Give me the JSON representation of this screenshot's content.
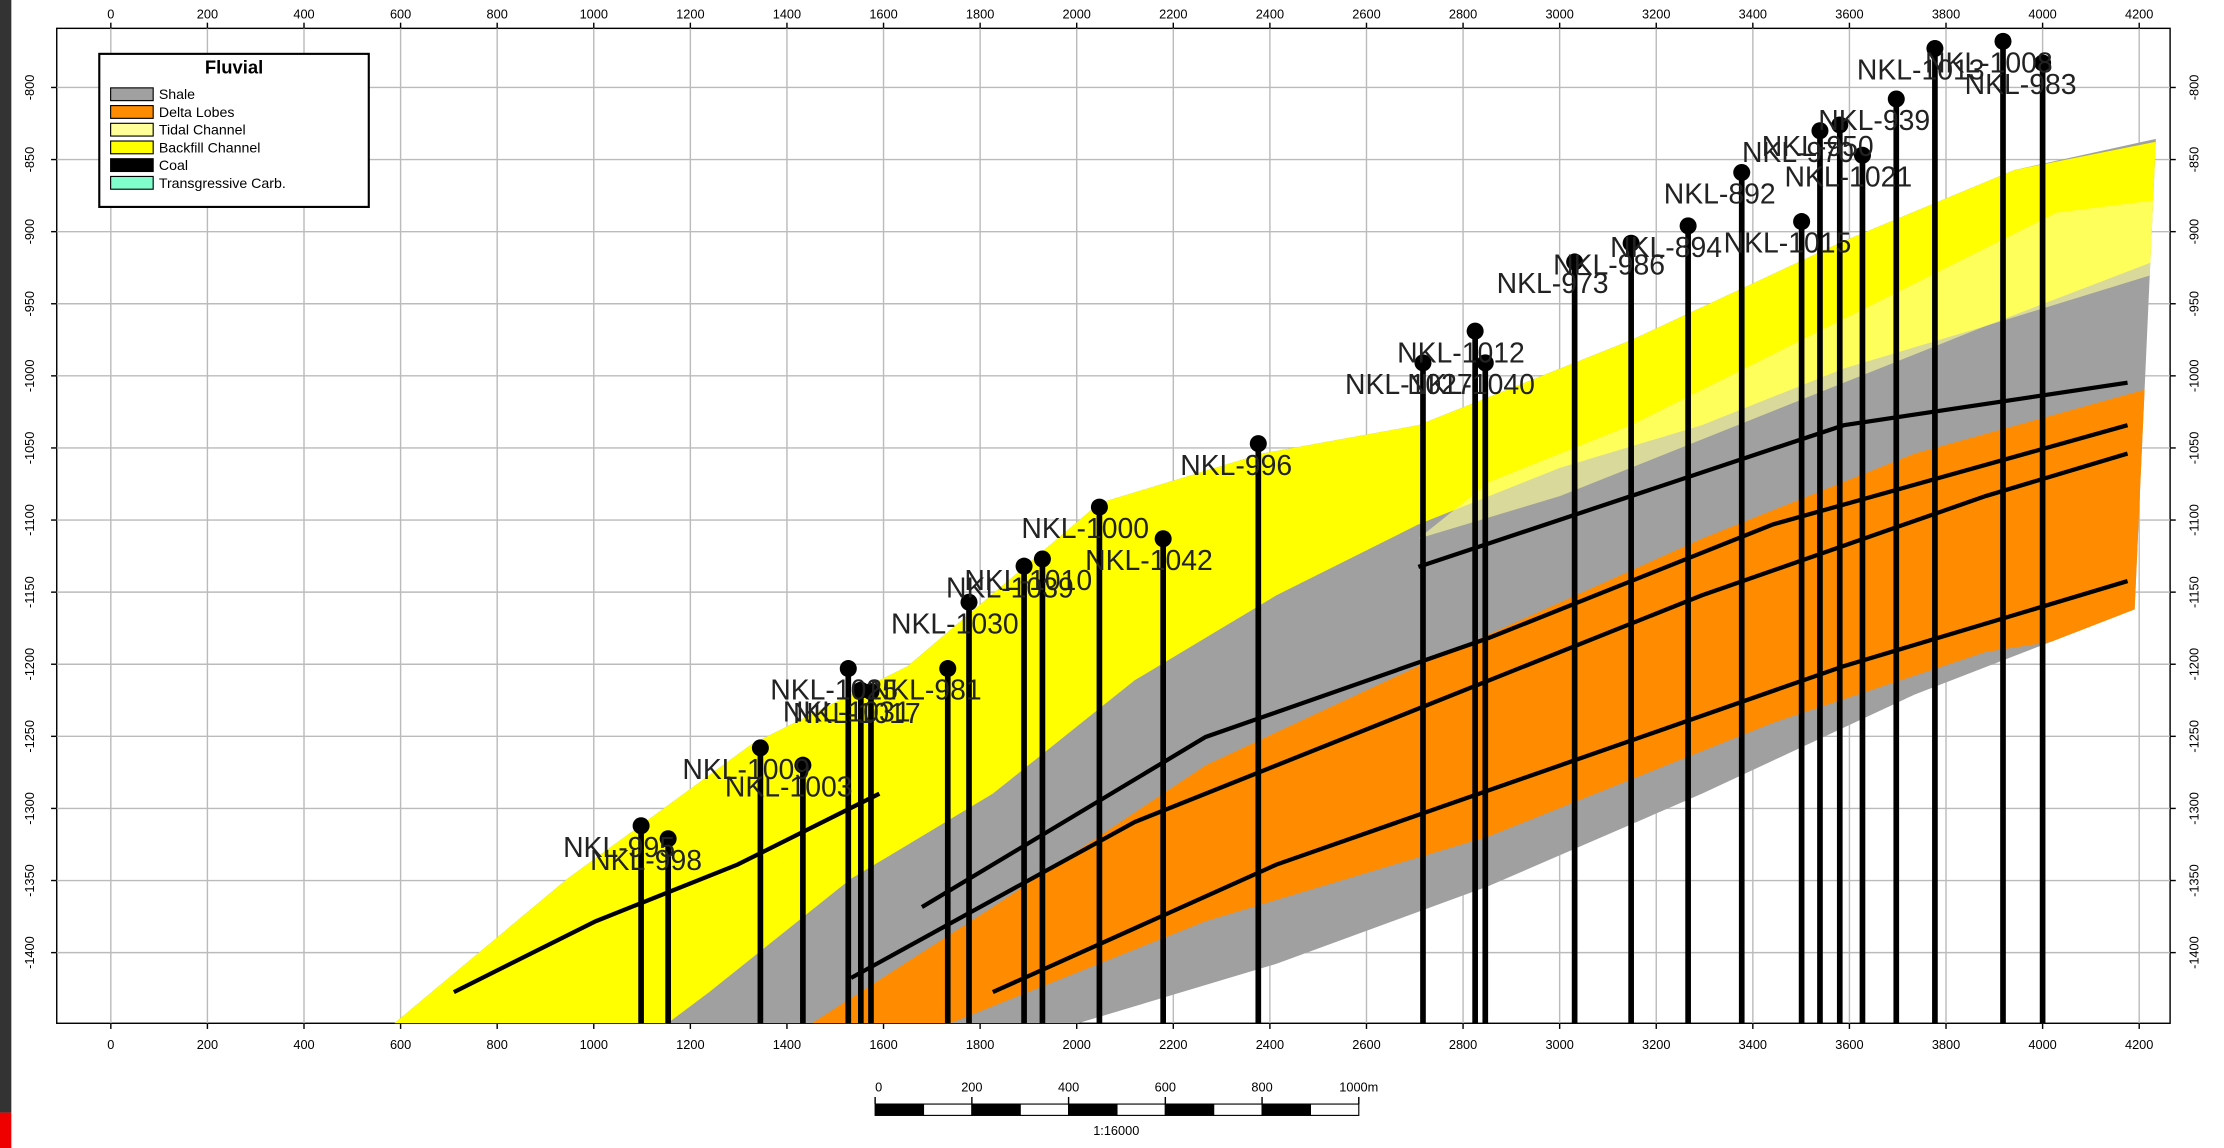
{
  "chart_data": {
    "type": "cross-section",
    "xlim": [
      -112,
      4264
    ],
    "xticks": [
      0,
      200,
      400,
      600,
      800,
      1000,
      1200,
      1400,
      1600,
      1800,
      2000,
      2200,
      2400,
      2600,
      2800,
      3000,
      3200,
      3400,
      3600,
      3800,
      4000,
      4200
    ],
    "ylim": [
      -1449,
      -759
    ],
    "yticks": [
      -800,
      -850,
      -900,
      -950,
      -1000,
      -1050,
      -1100,
      -1150,
      -1200,
      -1250,
      -1300,
      -1350,
      -1400
    ],
    "grid": true,
    "legend": {
      "title": "Fluvial",
      "position": "upper left",
      "items": [
        {
          "label": "Shale",
          "color": "#a0a0a0"
        },
        {
          "label": "Delta Lobes",
          "color": "#ff8c00"
        },
        {
          "label": "Tidal Channel",
          "color": "#ffff99"
        },
        {
          "label": "Backfill Channel",
          "color": "#ffff00"
        },
        {
          "label": "Coal",
          "color": "#000000"
        },
        {
          "label": "Transgressive Carb.",
          "color": "#80ffcc"
        }
      ]
    },
    "wells": [
      {
        "name": "NKL-995",
        "x": 1098,
        "top": -1312
      },
      {
        "name": "NKL-998",
        "x": 1154,
        "top": -1321
      },
      {
        "name": "NKL-1009",
        "x": 1345,
        "top": -1258
      },
      {
        "name": "NKL-1003",
        "x": 1433,
        "top": -1270
      },
      {
        "name": "NKL-1025",
        "x": 1527,
        "top": -1203
      },
      {
        "name": "NKL-1031",
        "x": 1553,
        "top": -1218
      },
      {
        "name": "NKL-1017",
        "x": 1574,
        "top": -1219
      },
      {
        "name": "NKL-981",
        "x": 1733,
        "top": -1203
      },
      {
        "name": "NKL-1030",
        "x": 1777,
        "top": -1157
      },
      {
        "name": "NKL-1039",
        "x": 1891,
        "top": -1132
      },
      {
        "name": "NKL-1010",
        "x": 1929,
        "top": -1127
      },
      {
        "name": "NKL-1000",
        "x": 2047,
        "top": -1091
      },
      {
        "name": "NKL-1042",
        "x": 2179,
        "top": -1113
      },
      {
        "name": "NKL-996",
        "x": 2376,
        "top": -1047
      },
      {
        "name": "NKL-1027",
        "x": 2717,
        "top": -991
      },
      {
        "name": "NKL-1012",
        "x": 2825,
        "top": -969
      },
      {
        "name": "NKL-1040",
        "x": 2846,
        "top": -991
      },
      {
        "name": "NKL-973",
        "x": 3031,
        "top": -921
      },
      {
        "name": "NKL-986",
        "x": 3148,
        "top": -908
      },
      {
        "name": "NKL-894",
        "x": 3266,
        "top": -896
      },
      {
        "name": "NKL-892",
        "x": 3377,
        "top": -859
      },
      {
        "name": "NKL-1015",
        "x": 3501,
        "top": -893
      },
      {
        "name": "NKL-970",
        "x": 3539,
        "top": -830
      },
      {
        "name": "NKL-950",
        "x": 3580,
        "top": -826
      },
      {
        "name": "NKL-1021",
        "x": 3627,
        "top": -847
      },
      {
        "name": "NKL-939",
        "x": 3697,
        "top": -808
      },
      {
        "name": "NKL-1013",
        "x": 3777,
        "top": -773
      },
      {
        "name": "NKL-1008",
        "x": 3918,
        "top": -768
      },
      {
        "name": "NKL-983",
        "x": 4000,
        "top": -783
      }
    ],
    "scale_bar": {
      "ticks": [
        0,
        200,
        400,
        600,
        800,
        {
          "value": 1000,
          "label": "1000m"
        }
      ],
      "ratio": "1:16000"
    }
  }
}
